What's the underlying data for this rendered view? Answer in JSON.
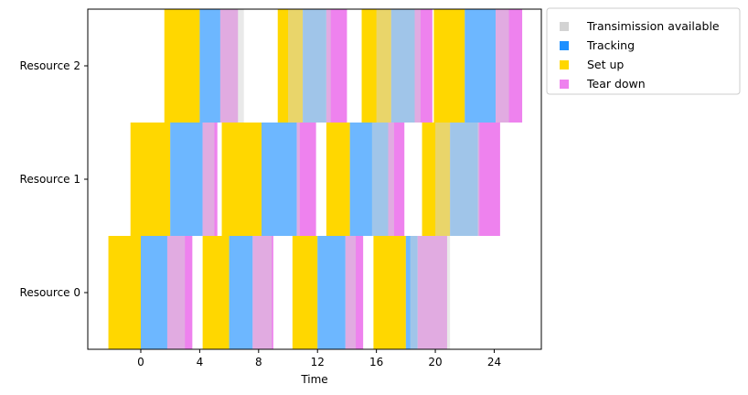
{
  "chart_data": {
    "type": "gantt",
    "title": "",
    "xlabel": "Time",
    "ylabel": "",
    "xlim": [
      -3.6,
      27.2
    ],
    "x_ticks": [
      0,
      4,
      8,
      12,
      16,
      20,
      24
    ],
    "resources": [
      "Resource 0",
      "Resource 1",
      "Resource 2"
    ],
    "grid": false,
    "legend_position": "outside-top-right",
    "legend": [
      {
        "name": "Transimission available",
        "color": "#d3d3d3"
      },
      {
        "name": "Tracking",
        "color": "#1e90ff"
      },
      {
        "name": "Set up",
        "color": "#ffd700"
      },
      {
        "name": "Tear down",
        "color": "#ee82ee"
      }
    ],
    "tasks": [
      {
        "resource": 0,
        "setup": [
          -2.2,
          0.0
        ],
        "tracking": [
          0.0,
          1.8
        ],
        "teardown": [
          1.8,
          3.5
        ],
        "transmission": [
          1.8,
          3.0
        ]
      },
      {
        "resource": 0,
        "setup": [
          4.2,
          6.0
        ],
        "tracking": [
          6.0,
          7.6
        ],
        "teardown": [
          7.6,
          9.0
        ],
        "transmission": [
          7.6,
          8.9
        ]
      },
      {
        "resource": 0,
        "setup": [
          10.3,
          12.0
        ],
        "tracking": [
          12.0,
          13.9
        ],
        "teardown": [
          13.9,
          15.1
        ],
        "transmission": [
          13.9,
          14.6
        ]
      },
      {
        "resource": 0,
        "setup": [
          15.8,
          18.0
        ],
        "tracking": [
          18.0,
          18.8
        ],
        "teardown": [
          18.8,
          20.8
        ],
        "transmission": [
          18.3,
          21.0
        ]
      },
      {
        "resource": 1,
        "setup": [
          -0.7,
          2.0
        ],
        "tracking": [
          2.0,
          4.2
        ],
        "teardown": [
          4.2,
          5.2
        ],
        "transmission": [
          4.2,
          5.0
        ]
      },
      {
        "resource": 1,
        "setup": [
          5.5,
          8.2
        ],
        "tracking": [
          8.2,
          10.6
        ],
        "teardown": [
          10.6,
          11.9
        ],
        "transmission": [
          10.6,
          10.8
        ]
      },
      {
        "resource": 1,
        "setup": [
          12.6,
          14.2
        ],
        "tracking": [
          14.2,
          16.8
        ],
        "teardown": [
          16.8,
          17.9
        ],
        "transmission": [
          15.7,
          17.2
        ]
      },
      {
        "resource": 1,
        "setup": [
          19.1,
          21.0
        ],
        "tracking": [
          21.0,
          22.9
        ],
        "teardown": [
          22.9,
          24.4
        ],
        "transmission": [
          20.0,
          23.0
        ]
      },
      {
        "resource": 2,
        "setup": [
          1.6,
          4.0
        ],
        "tracking": [
          4.0,
          5.4
        ],
        "teardown": [
          5.4,
          6.6
        ],
        "transmission": [
          5.4,
          7.0
        ]
      },
      {
        "resource": 2,
        "setup": [
          9.3,
          11.0
        ],
        "tracking": [
          11.0,
          12.6
        ],
        "teardown": [
          12.6,
          14.0
        ],
        "transmission": [
          10.0,
          12.9
        ]
      },
      {
        "resource": 2,
        "setup": [
          15.0,
          17.0
        ],
        "tracking": [
          17.0,
          18.6
        ],
        "teardown": [
          18.6,
          19.8
        ],
        "transmission": [
          16.0,
          19.0
        ]
      },
      {
        "resource": 2,
        "setup": [
          19.9,
          22.0
        ],
        "tracking": [
          22.0,
          24.1
        ],
        "teardown": [
          24.1,
          25.9
        ],
        "transmission": [
          24.1,
          25.0
        ]
      }
    ]
  }
}
